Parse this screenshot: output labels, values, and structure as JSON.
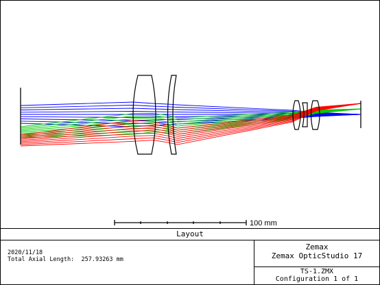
{
  "plot": {
    "scale_bar_label": "100 mm"
  },
  "title": "Layout",
  "info_left": {
    "date": "2020/11/18",
    "total_axial_length_label": "Total Axial Length:",
    "total_axial_length_value": "257.93263 mm"
  },
  "info_right": {
    "company": "Zemax",
    "product": "Zemax OpticStudio 17",
    "file_name": "TS-1.ZMX",
    "configuration": "Configuration 1 of 1"
  },
  "colors": {
    "field_1": "#0000ff",
    "field_2": "#00cc00",
    "field_3": "#ff0000",
    "lens": "#000000"
  }
}
